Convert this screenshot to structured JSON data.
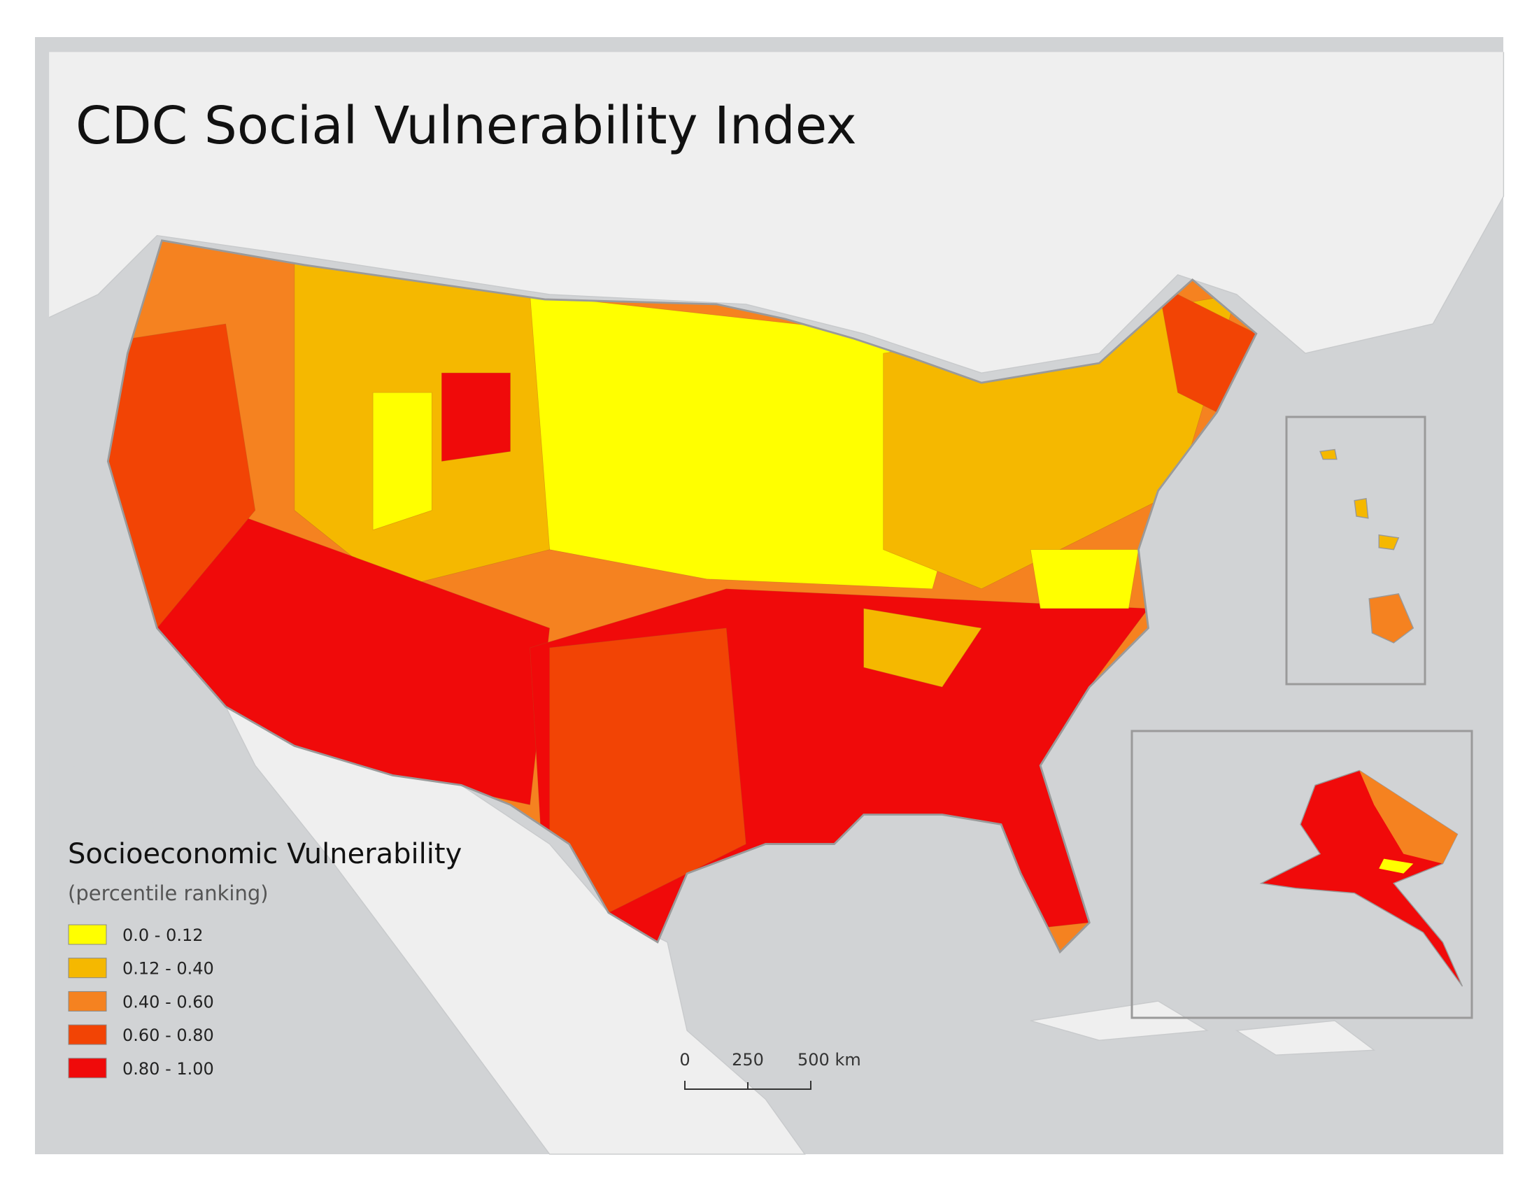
{
  "map": {
    "title": "CDC Social Vulnerability Index",
    "legend": {
      "title": "Socioeconomic Vulnerability",
      "subtitle": "(percentile ranking)",
      "items": [
        {
          "label": "0.0 - 0.12",
          "color": "#ffff00"
        },
        {
          "label": "0.12 - 0.40",
          "color": "#f5b800"
        },
        {
          "label": "0.40 - 0.60",
          "color": "#f58220"
        },
        {
          "label": "0.60 - 0.80",
          "color": "#f24405"
        },
        {
          "label": "0.80 - 1.00",
          "color": "#f00a0a"
        }
      ]
    },
    "scale_bar": {
      "labels": [
        "0",
        "250",
        "500 km"
      ]
    }
  }
}
